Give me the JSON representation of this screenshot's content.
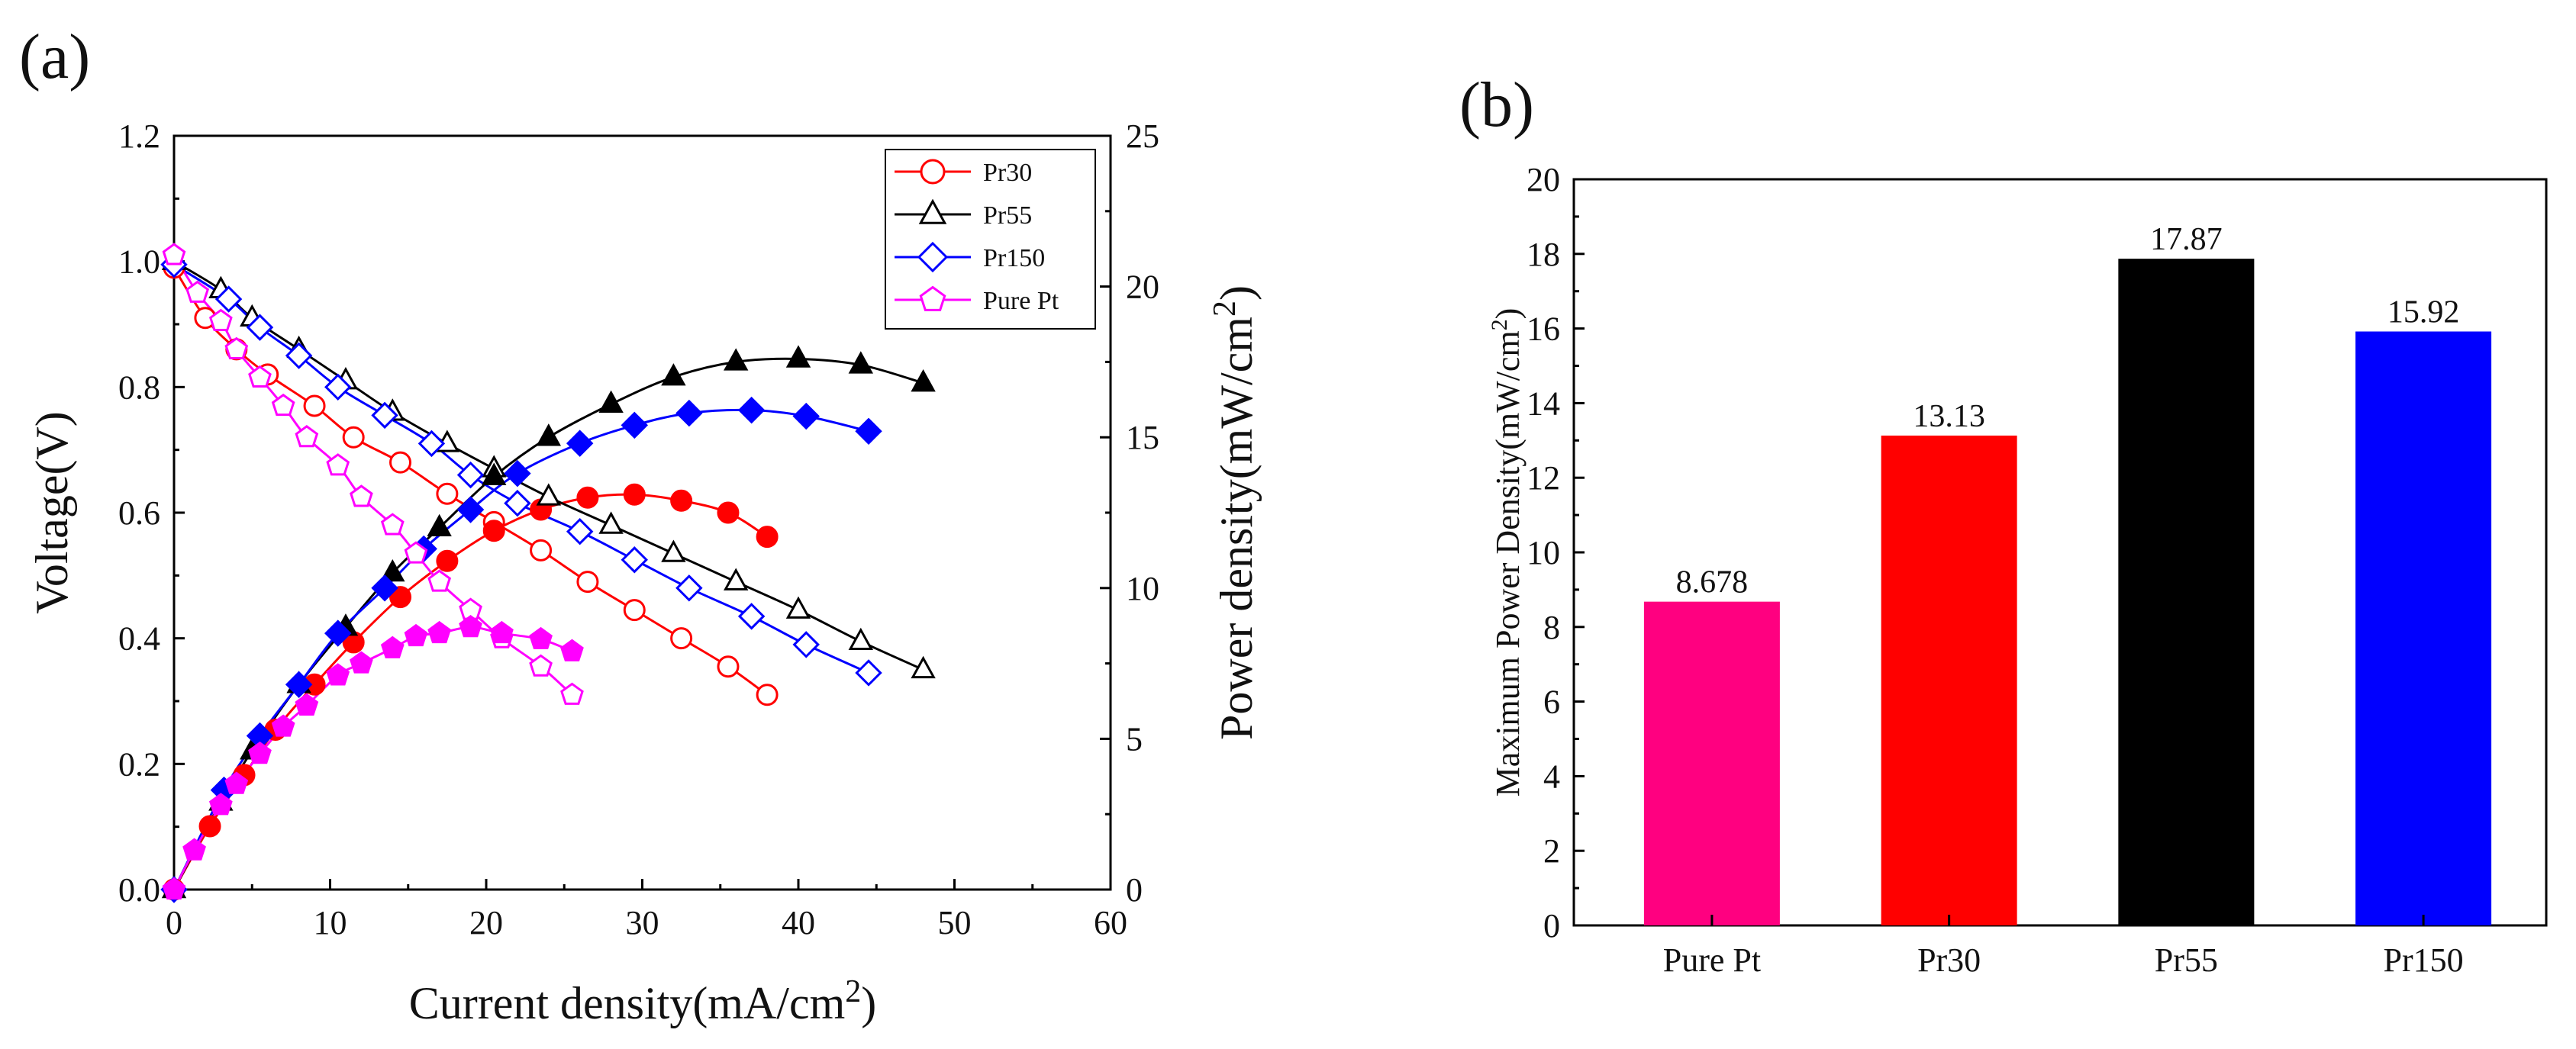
{
  "panels": {
    "a_label": "(a)",
    "b_label": "(b)"
  },
  "chart_data": [
    {
      "type": "line",
      "panel": "(a)",
      "xlabel": "Current density(mA/cm",
      "xlabel_sup": "2",
      "xlabel_close": ")",
      "ylabel_left": "Voltage(V)",
      "ylabel_right": "Power density(mW/cm",
      "ylabel_right_sup": "2",
      "ylabel_right_close": ")",
      "xlim": [
        0,
        60
      ],
      "ylim_left": [
        0,
        1.2
      ],
      "ylim_right": [
        0,
        25
      ],
      "xticks": [
        "0",
        "10",
        "20",
        "30",
        "40",
        "50",
        "60"
      ],
      "yticks_left": [
        "0.0",
        "0.2",
        "0.4",
        "0.6",
        "0.8",
        "1.0",
        "1.2"
      ],
      "yticks_right": [
        "0",
        "5",
        "10",
        "15",
        "20",
        "25"
      ],
      "legend_position": "top-right",
      "series": [
        {
          "name": "Pr30",
          "color": "#ff0000",
          "marker": "circle",
          "voltage": [
            [
              0,
              0.99
            ],
            [
              2,
              0.91
            ],
            [
              4,
              0.86
            ],
            [
              6,
              0.82
            ],
            [
              9,
              0.77
            ],
            [
              11.5,
              0.72
            ],
            [
              14.5,
              0.68
            ],
            [
              17.5,
              0.63
            ],
            [
              20.5,
              0.585
            ],
            [
              23.5,
              0.54
            ],
            [
              26.5,
              0.49
            ],
            [
              29.5,
              0.445
            ],
            [
              32.5,
              0.4
            ],
            [
              35.5,
              0.355
            ],
            [
              38,
              0.31
            ]
          ],
          "power": [
            [
              0,
              0
            ],
            [
              2.3,
              2.1
            ],
            [
              4.5,
              3.8
            ],
            [
              6.5,
              5.3
            ],
            [
              9,
              6.8
            ],
            [
              11.5,
              8.2
            ],
            [
              14.5,
              9.7
            ],
            [
              17.5,
              10.9
            ],
            [
              20.5,
              11.9
            ],
            [
              23.5,
              12.6
            ],
            [
              26.5,
              13.0
            ],
            [
              29.5,
              13.1
            ],
            [
              32.5,
              12.9
            ],
            [
              35.5,
              12.5
            ],
            [
              38,
              11.7
            ]
          ]
        },
        {
          "name": "Pr55",
          "color": "#000000",
          "marker": "triangle",
          "voltage": [
            [
              0,
              1.0
            ],
            [
              3,
              0.955
            ],
            [
              5,
              0.91
            ],
            [
              8,
              0.86
            ],
            [
              11,
              0.81
            ],
            [
              14,
              0.76
            ],
            [
              17.5,
              0.71
            ],
            [
              20.5,
              0.67
            ],
            [
              24,
              0.625
            ],
            [
              28,
              0.58
            ],
            [
              32,
              0.535
            ],
            [
              36,
              0.49
            ],
            [
              40,
              0.445
            ],
            [
              44,
              0.395
            ],
            [
              48,
              0.35
            ]
          ],
          "power": [
            [
              0,
              0
            ],
            [
              3,
              2.9
            ],
            [
              5,
              4.6
            ],
            [
              8,
              6.8
            ],
            [
              11,
              8.7
            ],
            [
              14,
              10.5
            ],
            [
              17,
              12.0
            ],
            [
              20.5,
              13.7
            ],
            [
              24,
              15.0
            ],
            [
              28,
              16.1
            ],
            [
              32,
              17.0
            ],
            [
              36,
              17.5
            ],
            [
              40,
              17.6
            ],
            [
              44,
              17.4
            ],
            [
              48,
              16.8
            ]
          ]
        },
        {
          "name": "Pr150",
          "color": "#0000ff",
          "marker": "diamond",
          "voltage": [
            [
              0,
              0.995
            ],
            [
              3.5,
              0.94
            ],
            [
              5.5,
              0.895
            ],
            [
              8,
              0.85
            ],
            [
              10.5,
              0.8
            ],
            [
              13.5,
              0.755
            ],
            [
              16.5,
              0.71
            ],
            [
              19,
              0.66
            ],
            [
              22,
              0.615
            ],
            [
              26,
              0.57
            ],
            [
              29.5,
              0.525
            ],
            [
              33,
              0.48
            ],
            [
              37,
              0.435
            ],
            [
              40.5,
              0.39
            ],
            [
              44.5,
              0.345
            ]
          ],
          "power": [
            [
              0,
              0
            ],
            [
              3.2,
              3.3
            ],
            [
              5.5,
              5.1
            ],
            [
              8,
              6.8
            ],
            [
              10.5,
              8.5
            ],
            [
              13.5,
              10.0
            ],
            [
              16,
              11.3
            ],
            [
              19,
              12.6
            ],
            [
              22,
              13.8
            ],
            [
              26,
              14.8
            ],
            [
              29.5,
              15.4
            ],
            [
              33,
              15.8
            ],
            [
              37,
              15.9
            ],
            [
              40.5,
              15.7
            ],
            [
              44.5,
              15.2
            ]
          ]
        },
        {
          "name": "Pure Pt",
          "color": "#ff00ff",
          "marker": "pentagon",
          "voltage": [
            [
              0,
              1.01
            ],
            [
              1.5,
              0.95
            ],
            [
              3,
              0.905
            ],
            [
              4,
              0.86
            ],
            [
              5.5,
              0.815
            ],
            [
              7,
              0.77
            ],
            [
              8.5,
              0.72
            ],
            [
              10.5,
              0.675
            ],
            [
              12,
              0.625
            ],
            [
              14,
              0.58
            ],
            [
              15.5,
              0.535
            ],
            [
              17,
              0.49
            ],
            [
              19,
              0.445
            ],
            [
              21,
              0.4
            ],
            [
              23.5,
              0.355
            ],
            [
              25.5,
              0.31
            ]
          ],
          "power": [
            [
              0,
              0
            ],
            [
              1.3,
              1.3
            ],
            [
              3,
              2.8
            ],
            [
              4,
              3.5
            ],
            [
              5.5,
              4.5
            ],
            [
              7,
              5.4
            ],
            [
              8.5,
              6.1
            ],
            [
              10.5,
              7.1
            ],
            [
              12,
              7.5
            ],
            [
              14,
              8.0
            ],
            [
              15.5,
              8.4
            ],
            [
              17,
              8.5
            ],
            [
              19,
              8.7
            ],
            [
              21,
              8.5
            ],
            [
              23.5,
              8.3
            ],
            [
              25.5,
              7.9
            ]
          ]
        }
      ]
    },
    {
      "type": "bar",
      "panel": "(b)",
      "ylabel": "Maximum Power Density(mW/cm",
      "ylabel_sup": "2",
      "ylabel_close": ")",
      "ylim": [
        0,
        20
      ],
      "yticks": [
        "0",
        "2",
        "4",
        "6",
        "8",
        "10",
        "12",
        "14",
        "16",
        "18",
        "20"
      ],
      "categories": [
        "Pure Pt",
        "Pr30",
        "Pr55",
        "Pr150"
      ],
      "values": [
        8.678,
        13.13,
        17.87,
        15.92
      ],
      "value_labels": [
        "8.678",
        "13.13",
        "17.87",
        "15.92"
      ],
      "colors": [
        "#ff0080",
        "#ff0000",
        "#000000",
        "#0000ff"
      ]
    }
  ]
}
